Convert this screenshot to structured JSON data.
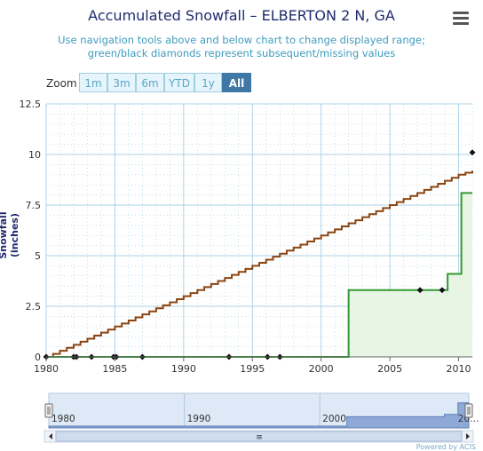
{
  "header": {
    "title": "Accumulated Snowfall – ELBERTON 2 N, GA",
    "subtitle": "Use navigation tools above and below chart to change displayed range; green/black diamonds represent subsequent/missing values",
    "menu_icon": "hamburger-menu-icon"
  },
  "zoom": {
    "label": "Zoom",
    "buttons": [
      "1m",
      "3m",
      "6m",
      "YTD",
      "1y",
      "All"
    ],
    "active": "All"
  },
  "navigator": {
    "labels": [
      "1980",
      "1990",
      "2000",
      "20…"
    ],
    "scrollbar_grip": "≡"
  },
  "credits": "Powered by ACIS",
  "colors": {
    "brown": "#8b4513",
    "green": "#339933",
    "green_fill": "#e8f5e4",
    "grid": "#aed3e6",
    "zoom_active": "#3f78a6"
  },
  "chart_data": {
    "type": "line",
    "title": "Accumulated Snowfall – ELBERTON 2 N, GA",
    "ylabel": "Snowfall (inches)",
    "xlabel": "",
    "xlim": [
      1980,
      2011
    ],
    "ylim": [
      0,
      12.5
    ],
    "x_ticks": [
      "1980",
      "1985",
      "1990",
      "1995",
      "2000",
      "2005",
      "2010"
    ],
    "y_ticks": [
      "0",
      "2.5",
      "5",
      "7.5",
      "10",
      "12.5"
    ],
    "grid": true,
    "series": [
      {
        "color": "#8b4513",
        "step": true,
        "x": [
          1980.0,
          1981.0,
          1982.0,
          1983.0,
          1984.0,
          1985.0,
          1986.0,
          1987.0,
          1988.0,
          1989.0,
          1990.0,
          1991.0,
          1992.0,
          1993.0,
          1994.0,
          1995.0,
          1996.0,
          1997.0,
          1998.0,
          1999.0,
          2000.0,
          2001.0,
          2002.0,
          2003.0,
          2004.0,
          2005.0,
          2006.0,
          2007.0,
          2008.0,
          2009.0,
          2010.0,
          2011.0
        ],
        "values": [
          0.0,
          0.3,
          0.6,
          0.9,
          1.2,
          1.5,
          1.8,
          2.1,
          2.4,
          2.7,
          3.0,
          3.3,
          3.6,
          3.9,
          4.2,
          4.5,
          4.8,
          5.1,
          5.4,
          5.7,
          6.0,
          6.3,
          6.6,
          6.9,
          7.2,
          7.5,
          7.8,
          8.1,
          8.4,
          8.7,
          9.0,
          9.2
        ]
      },
      {
        "color": "#339933",
        "step": true,
        "fill": true,
        "x": [
          1980.0,
          2002.0,
          2009.2,
          2010.2,
          2011.0
        ],
        "values": [
          0.0,
          3.3,
          4.1,
          8.1,
          8.1
        ]
      }
    ],
    "missing_markers": [
      {
        "x": 1980.0,
        "y": 0
      },
      {
        "x": 1982.0,
        "y": 0
      },
      {
        "x": 1982.2,
        "y": 0
      },
      {
        "x": 1983.3,
        "y": 0
      },
      {
        "x": 1984.9,
        "y": 0
      },
      {
        "x": 1985.1,
        "y": 0
      },
      {
        "x": 1987.0,
        "y": 0
      },
      {
        "x": 1993.3,
        "y": 0
      },
      {
        "x": 1996.1,
        "y": 0
      },
      {
        "x": 1997.0,
        "y": 0
      },
      {
        "x": 2007.2,
        "y": 3.3
      },
      {
        "x": 2008.8,
        "y": 3.3
      },
      {
        "x": 2011.0,
        "y": 10.1
      }
    ]
  }
}
